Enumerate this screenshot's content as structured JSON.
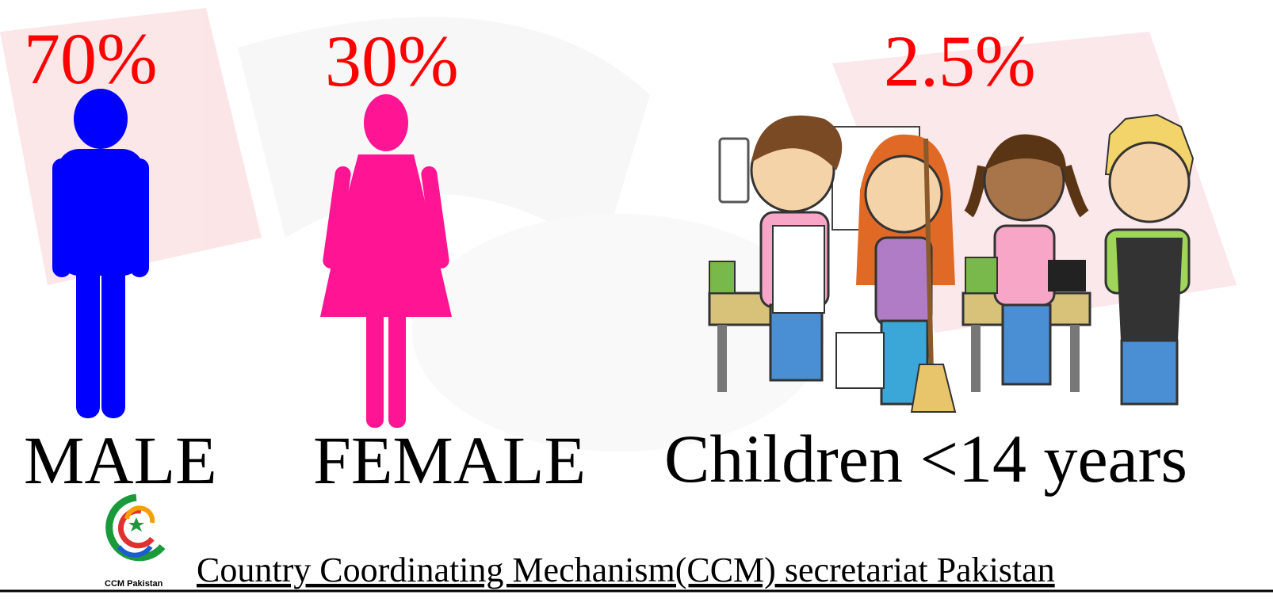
{
  "items": [
    {
      "value": "70%",
      "label": "MALE"
    },
    {
      "value": "30%",
      "label": "FEMALE"
    },
    {
      "value": "2.5%",
      "label": "Children <14 years"
    }
  ],
  "logo": "CCM Pakistan",
  "footer": "Country Coordinating Mechanism(CCM) secretariat Pakistan"
}
